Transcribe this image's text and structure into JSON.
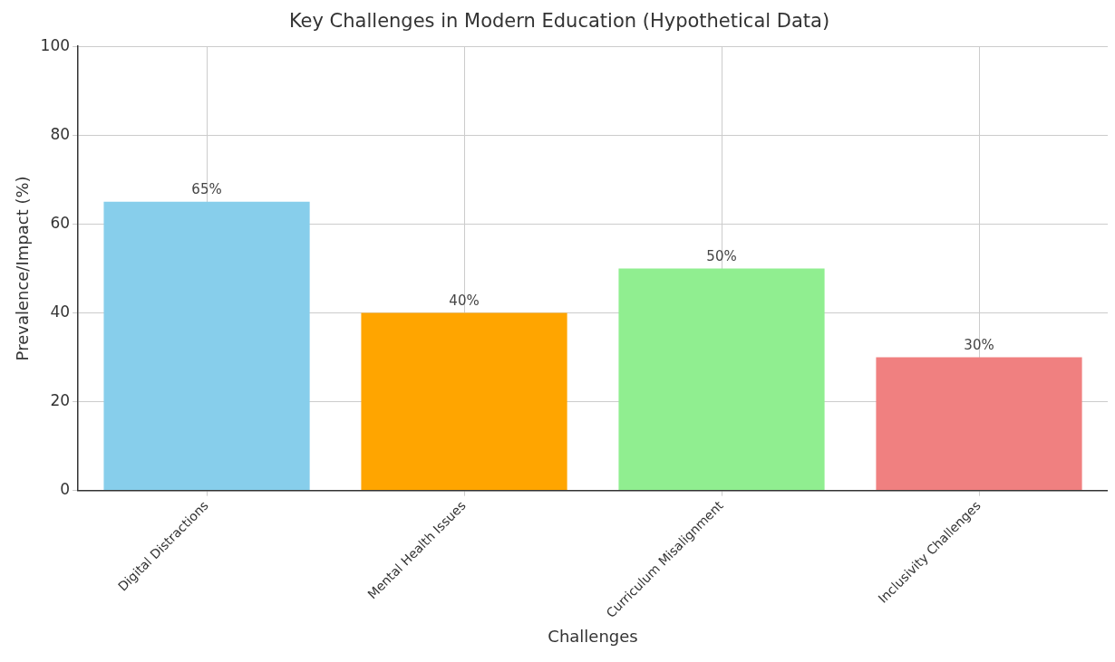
{
  "chart_data": {
    "type": "bar",
    "title": "Key Challenges in Modern Education (Hypothetical Data)",
    "xlabel": "Challenges",
    "ylabel": "Prevalence/Impact (%)",
    "categories": [
      "Digital Distractions",
      "Mental Health Issues",
      "Curriculum Misalignment",
      "Inclusivity Challenges"
    ],
    "values": [
      65,
      40,
      50,
      30
    ],
    "colors": [
      "#87ceeb",
      "#ffa500",
      "#90ee90",
      "#f08080"
    ],
    "value_labels": [
      "65%",
      "40%",
      "50%",
      "30%"
    ],
    "ylim": [
      0,
      100
    ],
    "yticks": [
      0,
      20,
      40,
      60,
      80,
      100
    ],
    "grid": true,
    "legend": false
  }
}
